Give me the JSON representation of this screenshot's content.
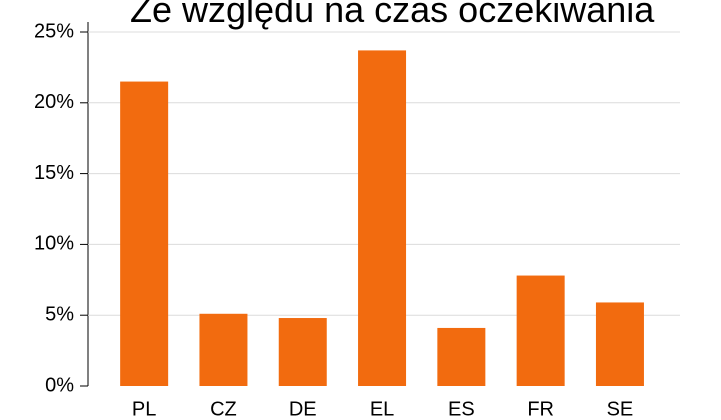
{
  "chart_data": {
    "type": "bar",
    "title": "Ze względu na czas oczekiwania",
    "categories": [
      "PL",
      "CZ",
      "DE",
      "EL",
      "ES",
      "FR",
      "SE"
    ],
    "values": [
      21.5,
      5.1,
      4.8,
      23.7,
      4.1,
      7.8,
      5.9
    ],
    "color": "#f26b0f",
    "ylim": [
      0,
      25
    ],
    "yticks": [
      {
        "value": 0,
        "label": "0%"
      },
      {
        "value": 5,
        "label": "5%"
      },
      {
        "value": 10,
        "label": "10%"
      },
      {
        "value": 15,
        "label": "15%"
      },
      {
        "value": 20,
        "label": "20%"
      },
      {
        "value": 25,
        "label": "25%"
      }
    ],
    "grid": true
  }
}
